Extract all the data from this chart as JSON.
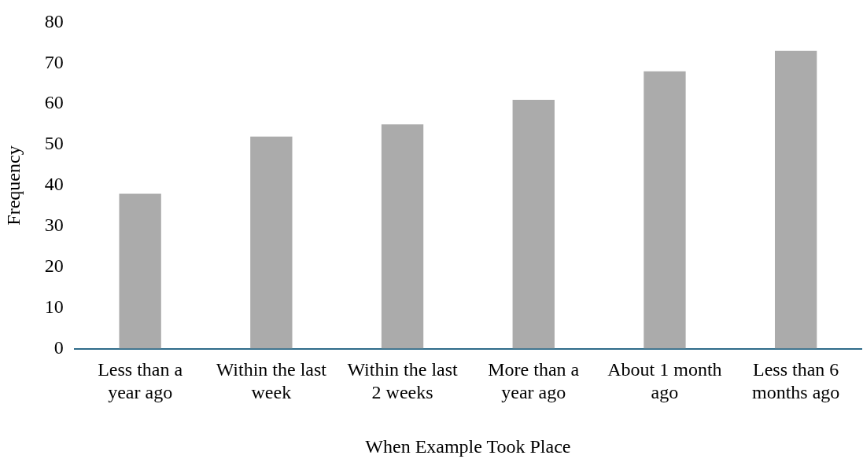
{
  "chart_data": {
    "type": "bar",
    "xlabel": "When Example Took Place",
    "ylabel": "Frequency",
    "categories": [
      "Less than a year ago",
      "Within the last week",
      "Within the last 2 weeks",
      "More than a year ago",
      "About 1 month ago",
      "Less than 6 months ago"
    ],
    "values": [
      38,
      52,
      55,
      61,
      68,
      73
    ],
    "color": "#ababab",
    "ylim": [
      0,
      80
    ],
    "yticks": [
      0,
      10,
      20,
      30,
      40,
      50,
      60,
      70,
      80
    ],
    "grid": false,
    "legend": false
  }
}
